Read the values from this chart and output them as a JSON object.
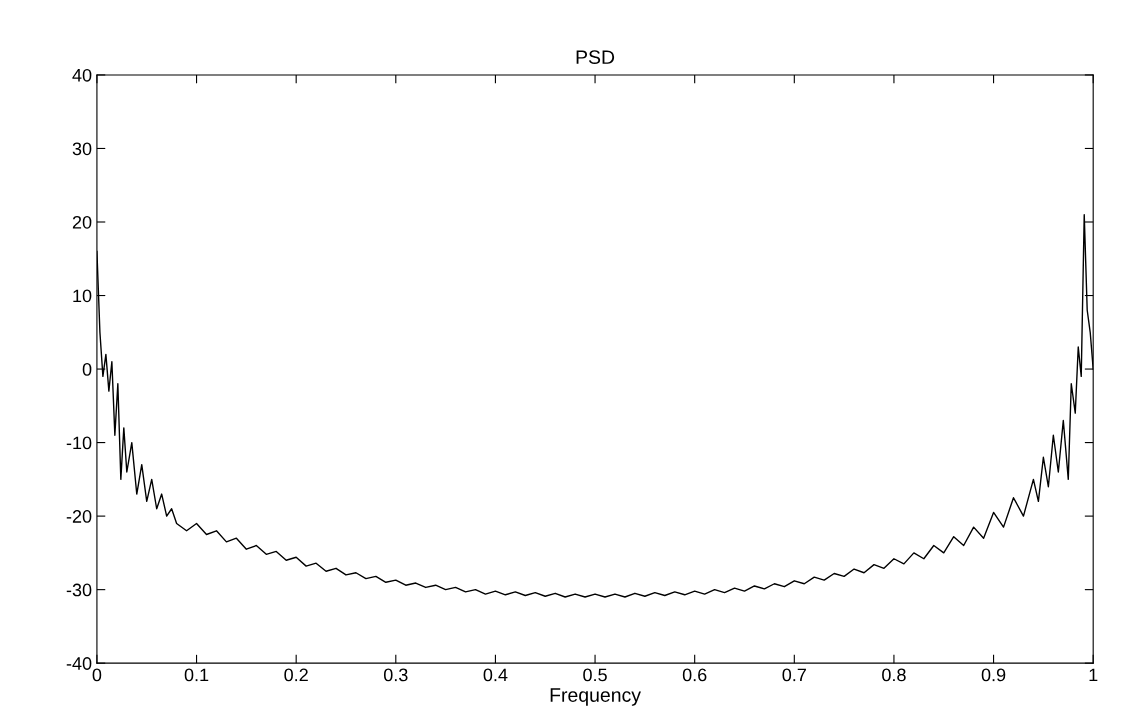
{
  "chart_data": {
    "type": "line",
    "title": "PSD",
    "xlabel": "Frequency",
    "xlim": [
      0,
      1
    ],
    "ylim": [
      -40,
      40
    ],
    "xticks": [
      0,
      0.1,
      0.2,
      0.3,
      0.4,
      0.5,
      0.6,
      0.7,
      0.8,
      0.9,
      1
    ],
    "yticks": [
      -40,
      -30,
      -20,
      -10,
      0,
      10,
      20,
      30,
      40
    ],
    "grid": false,
    "legend": false,
    "series": [
      {
        "color": "#000000",
        "x": [
          0,
          0.003,
          0.006,
          0.009,
          0.012,
          0.015,
          0.018,
          0.021,
          0.024,
          0.027,
          0.03,
          0.035,
          0.04,
          0.045,
          0.05,
          0.055,
          0.06,
          0.065,
          0.07,
          0.075,
          0.08,
          0.09,
          0.1,
          0.11,
          0.12,
          0.13,
          0.14,
          0.15,
          0.16,
          0.17,
          0.18,
          0.19,
          0.2,
          0.21,
          0.22,
          0.23,
          0.24,
          0.25,
          0.26,
          0.27,
          0.28,
          0.29,
          0.3,
          0.31,
          0.32,
          0.33,
          0.34,
          0.35,
          0.36,
          0.37,
          0.38,
          0.39,
          0.4,
          0.41,
          0.42,
          0.43,
          0.44,
          0.45,
          0.46,
          0.47,
          0.48,
          0.49,
          0.5,
          0.51,
          0.52,
          0.53,
          0.54,
          0.55,
          0.56,
          0.57,
          0.58,
          0.59,
          0.6,
          0.61,
          0.62,
          0.63,
          0.64,
          0.65,
          0.66,
          0.67,
          0.68,
          0.69,
          0.7,
          0.71,
          0.72,
          0.73,
          0.74,
          0.75,
          0.76,
          0.77,
          0.78,
          0.79,
          0.8,
          0.81,
          0.82,
          0.83,
          0.84,
          0.85,
          0.86,
          0.87,
          0.88,
          0.89,
          0.9,
          0.91,
          0.92,
          0.93,
          0.94,
          0.945,
          0.95,
          0.955,
          0.96,
          0.965,
          0.97,
          0.975,
          0.978,
          0.982,
          0.985,
          0.988,
          0.991,
          0.994,
          0.997,
          1.0
        ],
        "values": [
          16,
          5,
          -1,
          2,
          -3,
          1,
          -9,
          -2,
          -15,
          -8,
          -14,
          -10,
          -17,
          -13,
          -18,
          -15,
          -19,
          -17,
          -20,
          -19,
          -21,
          -22,
          -21.0,
          -22.5,
          -22.0,
          -23.5,
          -23.0,
          -24.5,
          -24.0,
          -25.2,
          -24.8,
          -26.0,
          -25.6,
          -26.8,
          -26.4,
          -27.5,
          -27.1,
          -28.0,
          -27.7,
          -28.5,
          -28.2,
          -29.0,
          -28.7,
          -29.4,
          -29.1,
          -29.7,
          -29.4,
          -30.0,
          -29.7,
          -30.3,
          -30.0,
          -30.6,
          -30.2,
          -30.7,
          -30.3,
          -30.8,
          -30.4,
          -30.9,
          -30.5,
          -31.0,
          -30.6,
          -31.0,
          -30.6,
          -31.0,
          -30.6,
          -31.0,
          -30.5,
          -30.9,
          -30.4,
          -30.8,
          -30.3,
          -30.7,
          -30.2,
          -30.6,
          -30.0,
          -30.4,
          -29.8,
          -30.2,
          -29.5,
          -29.9,
          -29.2,
          -29.6,
          -28.8,
          -29.2,
          -28.3,
          -28.7,
          -27.8,
          -28.2,
          -27.2,
          -27.7,
          -26.6,
          -27.1,
          -25.8,
          -26.5,
          -25.0,
          -25.8,
          -24.0,
          -25.0,
          -22.8,
          -24.0,
          -21.5,
          -23.0,
          -19.5,
          -21.5,
          -17.5,
          -20.0,
          -15.0,
          -18,
          -12,
          -16,
          -9,
          -14,
          -7,
          -15,
          -2,
          -6,
          3,
          -1,
          21,
          8,
          5,
          0
        ]
      }
    ]
  }
}
